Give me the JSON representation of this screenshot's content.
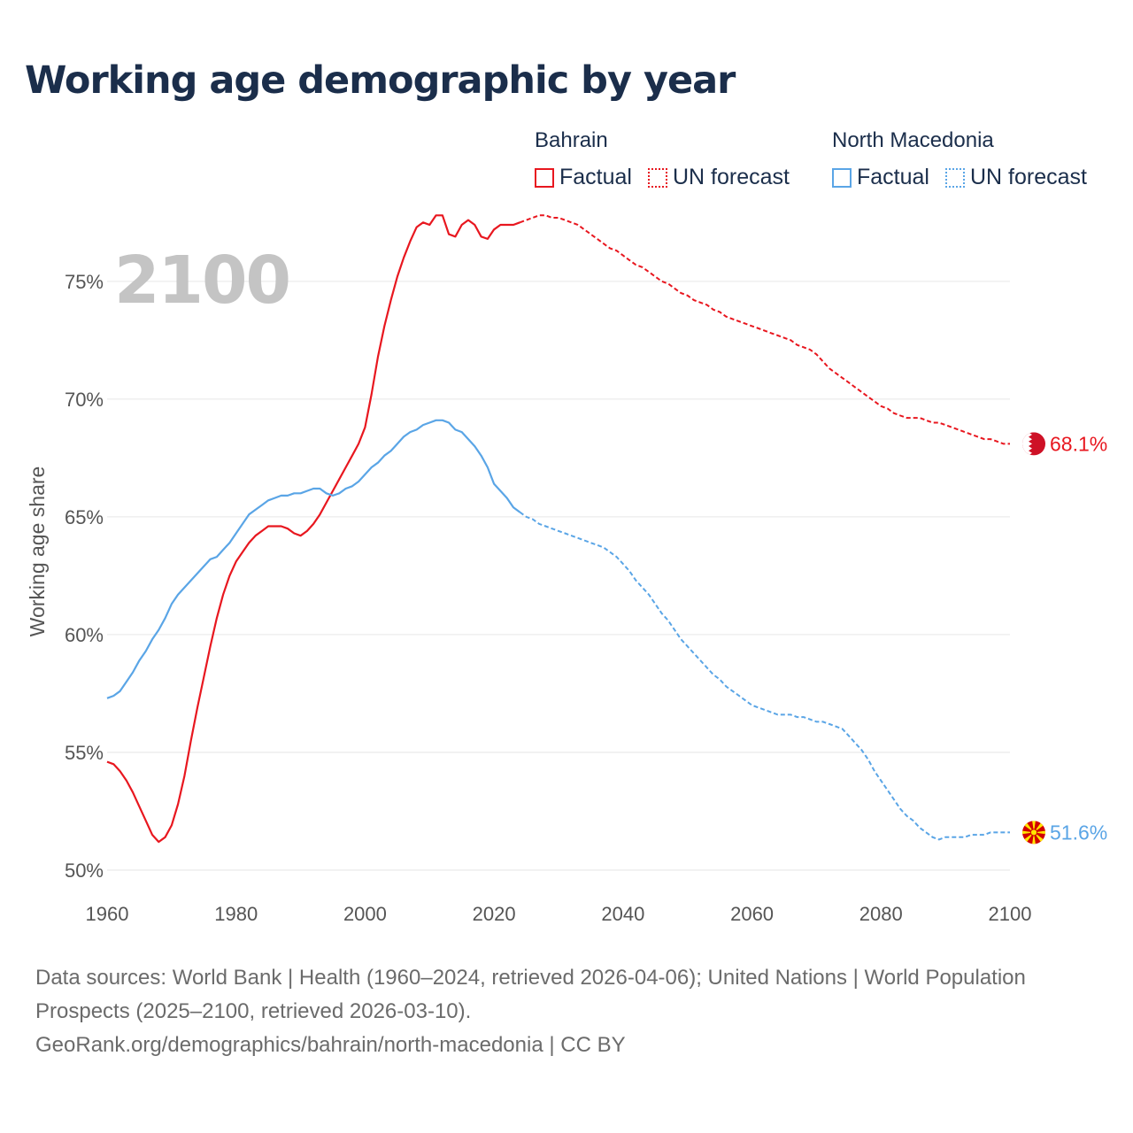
{
  "title": "Working age demographic by year",
  "legend": [
    {
      "group": "Bahrain",
      "color": "#e8171f",
      "items": [
        {
          "label": "Factual",
          "style": "solid"
        },
        {
          "label": "UN forecast",
          "style": "dotted"
        }
      ]
    },
    {
      "group": "North Macedonia",
      "color": "#5aa5e6",
      "items": [
        {
          "label": "Factual",
          "style": "solid"
        },
        {
          "label": "UN forecast",
          "style": "dotted"
        }
      ]
    }
  ],
  "footer": {
    "sources": "Data sources: World Bank | Health (1960–2024, retrieved 2026-04-06); United Nations | World Population Prospects (2025–2100, retrieved 2026-03-10).",
    "url": "GeoRank.org/demographics/bahrain/north-macedonia | CC BY"
  },
  "chart_data": {
    "type": "line",
    "title": "Working age demographic by year",
    "year_label": "2100",
    "xlabel": "",
    "ylabel": "Working age share",
    "xlim": [
      1960,
      2100
    ],
    "ylim": [
      50,
      78
    ],
    "x_ticks": [
      1960,
      1980,
      2000,
      2020,
      2040,
      2060,
      2080,
      2100
    ],
    "y_ticks": [
      {
        "value": 50,
        "label": "50%"
      },
      {
        "value": 55,
        "label": "55%"
      },
      {
        "value": 60,
        "label": "60%"
      },
      {
        "value": 65,
        "label": "65%"
      },
      {
        "value": 70,
        "label": "70%"
      },
      {
        "value": 75,
        "label": "75%"
      }
    ],
    "grid": true,
    "forecast_start": 2024,
    "series": [
      {
        "name": "Bahrain",
        "color": "#e8171f",
        "flag_icon": "bahrain-flag-icon",
        "end_label": "68.1%",
        "points": [
          [
            1960,
            54.6
          ],
          [
            1961,
            54.5
          ],
          [
            1962,
            54.2
          ],
          [
            1963,
            53.8
          ],
          [
            1964,
            53.3
          ],
          [
            1965,
            52.7
          ],
          [
            1966,
            52.1
          ],
          [
            1967,
            51.5
          ],
          [
            1968,
            51.2
          ],
          [
            1969,
            51.4
          ],
          [
            1970,
            51.9
          ],
          [
            1971,
            52.8
          ],
          [
            1972,
            54.0
          ],
          [
            1973,
            55.5
          ],
          [
            1974,
            56.9
          ],
          [
            1975,
            58.2
          ],
          [
            1976,
            59.5
          ],
          [
            1977,
            60.7
          ],
          [
            1978,
            61.7
          ],
          [
            1979,
            62.5
          ],
          [
            1980,
            63.1
          ],
          [
            1981,
            63.5
          ],
          [
            1982,
            63.9
          ],
          [
            1983,
            64.2
          ],
          [
            1984,
            64.4
          ],
          [
            1985,
            64.6
          ],
          [
            1986,
            64.6
          ],
          [
            1987,
            64.6
          ],
          [
            1988,
            64.5
          ],
          [
            1989,
            64.3
          ],
          [
            1990,
            64.2
          ],
          [
            1991,
            64.4
          ],
          [
            1992,
            64.7
          ],
          [
            1993,
            65.1
          ],
          [
            1994,
            65.6
          ],
          [
            1995,
            66.1
          ],
          [
            1996,
            66.6
          ],
          [
            1997,
            67.1
          ],
          [
            1998,
            67.6
          ],
          [
            1999,
            68.1
          ],
          [
            2000,
            68.8
          ],
          [
            2001,
            70.2
          ],
          [
            2002,
            71.8
          ],
          [
            2003,
            73.1
          ],
          [
            2004,
            74.2
          ],
          [
            2005,
            75.2
          ],
          [
            2006,
            76.0
          ],
          [
            2007,
            76.7
          ],
          [
            2008,
            77.3
          ],
          [
            2009,
            77.5
          ],
          [
            2010,
            77.4
          ],
          [
            2011,
            77.8
          ],
          [
            2012,
            77.8
          ],
          [
            2013,
            77.0
          ],
          [
            2014,
            76.9
          ],
          [
            2015,
            77.4
          ],
          [
            2016,
            77.6
          ],
          [
            2017,
            77.4
          ],
          [
            2018,
            76.9
          ],
          [
            2019,
            76.8
          ],
          [
            2020,
            77.2
          ],
          [
            2021,
            77.4
          ],
          [
            2022,
            77.4
          ],
          [
            2023,
            77.4
          ],
          [
            2024,
            77.5
          ],
          [
            2025,
            77.6
          ],
          [
            2026,
            77.7
          ],
          [
            2027,
            77.8
          ],
          [
            2028,
            77.8
          ],
          [
            2029,
            77.7
          ],
          [
            2030,
            77.7
          ],
          [
            2031,
            77.6
          ],
          [
            2032,
            77.5
          ],
          [
            2033,
            77.4
          ],
          [
            2034,
            77.2
          ],
          [
            2035,
            77.0
          ],
          [
            2036,
            76.8
          ],
          [
            2037,
            76.6
          ],
          [
            2038,
            76.4
          ],
          [
            2039,
            76.3
          ],
          [
            2040,
            76.1
          ],
          [
            2041,
            75.9
          ],
          [
            2042,
            75.7
          ],
          [
            2043,
            75.6
          ],
          [
            2044,
            75.4
          ],
          [
            2045,
            75.2
          ],
          [
            2046,
            75.0
          ],
          [
            2047,
            74.9
          ],
          [
            2048,
            74.7
          ],
          [
            2049,
            74.5
          ],
          [
            2050,
            74.4
          ],
          [
            2051,
            74.2
          ],
          [
            2052,
            74.1
          ],
          [
            2053,
            74.0
          ],
          [
            2054,
            73.8
          ],
          [
            2055,
            73.7
          ],
          [
            2056,
            73.5
          ],
          [
            2057,
            73.4
          ],
          [
            2058,
            73.3
          ],
          [
            2059,
            73.2
          ],
          [
            2060,
            73.1
          ],
          [
            2061,
            73.0
          ],
          [
            2062,
            72.9
          ],
          [
            2063,
            72.8
          ],
          [
            2064,
            72.7
          ],
          [
            2065,
            72.6
          ],
          [
            2066,
            72.5
          ],
          [
            2067,
            72.3
          ],
          [
            2068,
            72.2
          ],
          [
            2069,
            72.1
          ],
          [
            2070,
            71.9
          ],
          [
            2071,
            71.6
          ],
          [
            2072,
            71.3
          ],
          [
            2073,
            71.1
          ],
          [
            2074,
            70.9
          ],
          [
            2075,
            70.7
          ],
          [
            2076,
            70.5
          ],
          [
            2077,
            70.3
          ],
          [
            2078,
            70.1
          ],
          [
            2079,
            69.9
          ],
          [
            2080,
            69.7
          ],
          [
            2081,
            69.6
          ],
          [
            2082,
            69.4
          ],
          [
            2083,
            69.3
          ],
          [
            2084,
            69.2
          ],
          [
            2085,
            69.2
          ],
          [
            2086,
            69.2
          ],
          [
            2087,
            69.1
          ],
          [
            2088,
            69.0
          ],
          [
            2089,
            69.0
          ],
          [
            2090,
            68.9
          ],
          [
            2091,
            68.8
          ],
          [
            2092,
            68.7
          ],
          [
            2093,
            68.6
          ],
          [
            2094,
            68.5
          ],
          [
            2095,
            68.4
          ],
          [
            2096,
            68.3
          ],
          [
            2097,
            68.3
          ],
          [
            2098,
            68.2
          ],
          [
            2099,
            68.1
          ],
          [
            2100,
            68.1
          ]
        ]
      },
      {
        "name": "North Macedonia",
        "color": "#5aa5e6",
        "flag_icon": "north-macedonia-flag-icon",
        "end_label": "51.6%",
        "points": [
          [
            1960,
            57.3
          ],
          [
            1961,
            57.4
          ],
          [
            1962,
            57.6
          ],
          [
            1963,
            58.0
          ],
          [
            1964,
            58.4
          ],
          [
            1965,
            58.9
          ],
          [
            1966,
            59.3
          ],
          [
            1967,
            59.8
          ],
          [
            1968,
            60.2
          ],
          [
            1969,
            60.7
          ],
          [
            1970,
            61.3
          ],
          [
            1971,
            61.7
          ],
          [
            1972,
            62.0
          ],
          [
            1973,
            62.3
          ],
          [
            1974,
            62.6
          ],
          [
            1975,
            62.9
          ],
          [
            1976,
            63.2
          ],
          [
            1977,
            63.3
          ],
          [
            1978,
            63.6
          ],
          [
            1979,
            63.9
          ],
          [
            1980,
            64.3
          ],
          [
            1981,
            64.7
          ],
          [
            1982,
            65.1
          ],
          [
            1983,
            65.3
          ],
          [
            1984,
            65.5
          ],
          [
            1985,
            65.7
          ],
          [
            1986,
            65.8
          ],
          [
            1987,
            65.9
          ],
          [
            1988,
            65.9
          ],
          [
            1989,
            66.0
          ],
          [
            1990,
            66.0
          ],
          [
            1991,
            66.1
          ],
          [
            1992,
            66.2
          ],
          [
            1993,
            66.2
          ],
          [
            1994,
            66.0
          ],
          [
            1995,
            65.9
          ],
          [
            1996,
            66.0
          ],
          [
            1997,
            66.2
          ],
          [
            1998,
            66.3
          ],
          [
            1999,
            66.5
          ],
          [
            2000,
            66.8
          ],
          [
            2001,
            67.1
          ],
          [
            2002,
            67.3
          ],
          [
            2003,
            67.6
          ],
          [
            2004,
            67.8
          ],
          [
            2005,
            68.1
          ],
          [
            2006,
            68.4
          ],
          [
            2007,
            68.6
          ],
          [
            2008,
            68.7
          ],
          [
            2009,
            68.9
          ],
          [
            2010,
            69.0
          ],
          [
            2011,
            69.1
          ],
          [
            2012,
            69.1
          ],
          [
            2013,
            69.0
          ],
          [
            2014,
            68.7
          ],
          [
            2015,
            68.6
          ],
          [
            2016,
            68.3
          ],
          [
            2017,
            68.0
          ],
          [
            2018,
            67.6
          ],
          [
            2019,
            67.1
          ],
          [
            2020,
            66.4
          ],
          [
            2021,
            66.1
          ],
          [
            2022,
            65.8
          ],
          [
            2023,
            65.4
          ],
          [
            2024,
            65.2
          ],
          [
            2025,
            65.0
          ],
          [
            2026,
            64.9
          ],
          [
            2027,
            64.7
          ],
          [
            2028,
            64.6
          ],
          [
            2029,
            64.5
          ],
          [
            2030,
            64.4
          ],
          [
            2031,
            64.3
          ],
          [
            2032,
            64.2
          ],
          [
            2033,
            64.1
          ],
          [
            2034,
            64.0
          ],
          [
            2035,
            63.9
          ],
          [
            2036,
            63.8
          ],
          [
            2037,
            63.7
          ],
          [
            2038,
            63.5
          ],
          [
            2039,
            63.3
          ],
          [
            2040,
            63.0
          ],
          [
            2041,
            62.7
          ],
          [
            2042,
            62.3
          ],
          [
            2043,
            62.0
          ],
          [
            2044,
            61.7
          ],
          [
            2045,
            61.3
          ],
          [
            2046,
            60.9
          ],
          [
            2047,
            60.6
          ],
          [
            2048,
            60.2
          ],
          [
            2049,
            59.8
          ],
          [
            2050,
            59.5
          ],
          [
            2051,
            59.2
          ],
          [
            2052,
            58.9
          ],
          [
            2053,
            58.6
          ],
          [
            2054,
            58.3
          ],
          [
            2055,
            58.1
          ],
          [
            2056,
            57.8
          ],
          [
            2057,
            57.6
          ],
          [
            2058,
            57.4
          ],
          [
            2059,
            57.2
          ],
          [
            2060,
            57.0
          ],
          [
            2061,
            56.9
          ],
          [
            2062,
            56.8
          ],
          [
            2063,
            56.7
          ],
          [
            2064,
            56.6
          ],
          [
            2065,
            56.6
          ],
          [
            2066,
            56.6
          ],
          [
            2067,
            56.5
          ],
          [
            2068,
            56.5
          ],
          [
            2069,
            56.4
          ],
          [
            2070,
            56.3
          ],
          [
            2071,
            56.3
          ],
          [
            2072,
            56.2
          ],
          [
            2073,
            56.1
          ],
          [
            2074,
            56.0
          ],
          [
            2075,
            55.7
          ],
          [
            2076,
            55.4
          ],
          [
            2077,
            55.1
          ],
          [
            2078,
            54.7
          ],
          [
            2079,
            54.2
          ],
          [
            2080,
            53.8
          ],
          [
            2081,
            53.4
          ],
          [
            2082,
            53.0
          ],
          [
            2083,
            52.6
          ],
          [
            2084,
            52.3
          ],
          [
            2085,
            52.1
          ],
          [
            2086,
            51.8
          ],
          [
            2087,
            51.6
          ],
          [
            2088,
            51.4
          ],
          [
            2089,
            51.3
          ],
          [
            2090,
            51.4
          ],
          [
            2091,
            51.4
          ],
          [
            2092,
            51.4
          ],
          [
            2093,
            51.4
          ],
          [
            2094,
            51.5
          ],
          [
            2095,
            51.5
          ],
          [
            2096,
            51.5
          ],
          [
            2097,
            51.6
          ],
          [
            2098,
            51.6
          ],
          [
            2099,
            51.6
          ],
          [
            2100,
            51.6
          ]
        ]
      }
    ]
  }
}
